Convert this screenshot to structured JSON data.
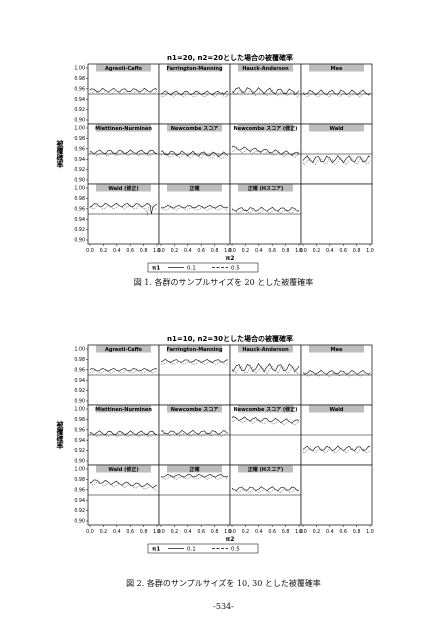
{
  "figures": [
    {
      "title": "n1=20, n2=20とした場合の被覆確率",
      "caption": "図 1.  各群のサンプルサイズを 20 とした被覆確率"
    },
    {
      "title": "n1=10, n2=30とした場合の被覆確率",
      "caption": "図 2.  各群のサンプルサイズを 10, 30 とした被覆確率"
    }
  ],
  "page_number": "-534-",
  "chart_data": [
    {
      "type": "line",
      "title": "n1=20, n2=20とした場合の被覆確率",
      "ylabel": "被覆確率",
      "xlabel": "π2",
      "ylim": [
        0.9,
        1.0
      ],
      "xlim": [
        0.0,
        1.0
      ],
      "yticks": [
        "1.00",
        "0.98",
        "0.96",
        "0.94",
        "0.92",
        "0.90"
      ],
      "xticks": [
        "0.0",
        "0.2",
        "0.4",
        "0.6",
        "0.8",
        "1.0"
      ],
      "reference_line": 0.95,
      "legend": {
        "title": "π1",
        "series": [
          "0.1",
          "0.5"
        ]
      },
      "panels": [
        {
          "name": "Agresti-Caffo",
          "mean": 0.955,
          "amp": 0.004,
          "trend": 0.0,
          "spike": 0.0
        },
        {
          "name": "Farrington-Manning",
          "mean": 0.95,
          "amp": 0.004,
          "trend": 0.0,
          "spike": 0.003
        },
        {
          "name": "Hauck-Anderson",
          "mean": 0.956,
          "amp": 0.006,
          "trend": -0.004,
          "spike": 0.002
        },
        {
          "name": "Mee",
          "mean": 0.951,
          "amp": 0.005,
          "trend": 0.0,
          "spike": 0.0
        },
        {
          "name": "Miettinen-Nurminen",
          "mean": 0.952,
          "amp": 0.004,
          "trend": 0.0,
          "spike": 0.0
        },
        {
          "name": "Newcombe スコア",
          "mean": 0.95,
          "amp": 0.005,
          "trend": -0.003,
          "spike": 0.0
        },
        {
          "name": "Newcombe スコア (修正)",
          "mean": 0.96,
          "amp": 0.004,
          "trend": -0.012,
          "spike": 0.0
        },
        {
          "name": "Wald",
          "mean": 0.938,
          "amp": 0.007,
          "trend": 0.0,
          "spike": 0.0
        },
        {
          "name": "Wald (修正)",
          "mean": 0.965,
          "amp": 0.004,
          "trend": 0.0,
          "spike": -0.015
        },
        {
          "name": "正確",
          "mean": 0.962,
          "amp": 0.003,
          "trend": 0.0,
          "spike": 0.0
        },
        {
          "name": "正確 (Hスコア)",
          "mean": 0.957,
          "amp": 0.004,
          "trend": 0.0,
          "spike": 0.0
        },
        {
          "name": "",
          "mean": null,
          "amp": 0,
          "trend": 0,
          "spike": 0
        }
      ]
    },
    {
      "type": "line",
      "title": "n1=10, n2=30とした場合の被覆確率",
      "ylabel": "被覆確率",
      "xlabel": "π2",
      "ylim": [
        0.9,
        1.0
      ],
      "xlim": [
        0.0,
        1.0
      ],
      "yticks": [
        "1.00",
        "0.98",
        "0.96",
        "0.94",
        "0.92",
        "0.90"
      ],
      "xticks": [
        "0.0",
        "0.2",
        "0.4",
        "0.6",
        "0.8",
        "1.0"
      ],
      "reference_line": 0.95,
      "legend": {
        "title": "π1",
        "series": [
          "0.1",
          "0.5"
        ]
      },
      "panels": [
        {
          "name": "Agresti-Caffo",
          "mean": 0.958,
          "amp": 0.003,
          "trend": 0.0,
          "spike": 0.0
        },
        {
          "name": "Farrington-Manning",
          "mean": 0.975,
          "amp": 0.003,
          "trend": 0.0,
          "spike": 0.0
        },
        {
          "name": "Hauck-Anderson",
          "mean": 0.962,
          "amp": 0.008,
          "trend": 0.0,
          "spike": 0.0
        },
        {
          "name": "Mee",
          "mean": 0.953,
          "amp": 0.004,
          "trend": 0.0,
          "spike": 0.0
        },
        {
          "name": "Miettinen-Nurminen",
          "mean": 0.952,
          "amp": 0.004,
          "trend": 0.0,
          "spike": 0.0
        },
        {
          "name": "Newcombe スコア",
          "mean": 0.953,
          "amp": 0.004,
          "trend": 0.0,
          "spike": 0.0
        },
        {
          "name": "Newcombe スコア (修正)",
          "mean": 0.98,
          "amp": 0.004,
          "trend": -0.006,
          "spike": 0.0
        },
        {
          "name": "Wald",
          "mean": 0.922,
          "amp": 0.005,
          "trend": 0.0,
          "spike": 0.0
        },
        {
          "name": "Wald (修正)",
          "mean": 0.975,
          "amp": 0.004,
          "trend": -0.01,
          "spike": 0.0
        },
        {
          "name": "正確",
          "mean": 0.985,
          "amp": 0.003,
          "trend": 0.0,
          "spike": 0.0
        },
        {
          "name": "正確 (Hスコア)",
          "mean": 0.96,
          "amp": 0.004,
          "trend": 0.0,
          "spike": 0.0
        },
        {
          "name": "",
          "mean": null,
          "amp": 0,
          "trend": 0,
          "spike": 0
        }
      ]
    }
  ]
}
